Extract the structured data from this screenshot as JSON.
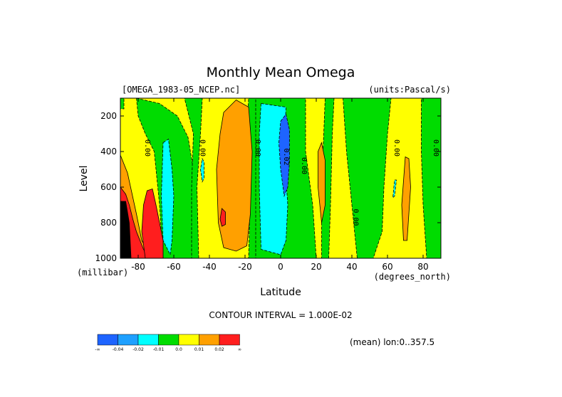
{
  "chart_data": {
    "type": "heatmap",
    "title": "Monthly Mean Omega",
    "dataset_label": "[OMEGA_1983-05_NCEP.nc]",
    "units_label": "(units:Pascal/s)",
    "xlabel": "Latitude",
    "ylabel": "Level",
    "x_units": "(degrees_north)",
    "y_units": "(millibar)",
    "xlim": [
      -90,
      90
    ],
    "ylim": [
      1000,
      100
    ],
    "x_ticks": [
      -80,
      -60,
      -40,
      -20,
      0,
      20,
      40,
      60,
      80
    ],
    "x_tick_labels": [
      "-80",
      "-60",
      "-40",
      "-20",
      "0",
      "20",
      "40",
      "60",
      "80"
    ],
    "y_ticks": [
      200,
      400,
      600,
      800,
      1000
    ],
    "y_tick_labels": [
      "200",
      "400",
      "600",
      "800",
      "1000"
    ],
    "contour_interval_text": "CONTOUR INTERVAL = 1.000E-02",
    "mean_text": "(mean) lon:0..357.5",
    "colorbar": {
      "colors": [
        "#1e64ff",
        "#1ea0ff",
        "#00ffff",
        "#00dc00",
        "#ffff00",
        "#ffa000",
        "#ff1e1e"
      ],
      "labels": [
        "-∞",
        "-0.04",
        "-0.02",
        "-0.01",
        "0.0",
        "0.01",
        "0.02",
        "∞"
      ]
    },
    "contour_labels": [
      {
        "text": "0.00",
        "lat": -76,
        "lev": 380
      },
      {
        "text": "0.00",
        "lat": -45,
        "lev": 380
      },
      {
        "text": "0.00",
        "lat": -14,
        "lev": 380
      },
      {
        "text": "0.02",
        "lat": 2,
        "lev": 430
      },
      {
        "text": "0.00",
        "lat": 12,
        "lev": 480
      },
      {
        "text": "0.00",
        "lat": 41,
        "lev": 770
      },
      {
        "text": "0.00",
        "lat": 64,
        "lev": 380
      },
      {
        "text": "0.00",
        "lat": 86,
        "lev": 380
      }
    ],
    "regions": [
      {
        "level": "0.0",
        "points": [
          [
            -90,
            100
          ],
          [
            90,
            100
          ],
          [
            90,
            1000
          ],
          [
            -90,
            1000
          ]
        ]
      },
      {
        "level": "-0.01",
        "points": [
          [
            -81,
            100
          ],
          [
            -68,
            130
          ],
          [
            -58,
            200
          ],
          [
            -52,
            320
          ],
          [
            -49,
            500
          ],
          [
            -48,
            700
          ],
          [
            -48,
            1000
          ],
          [
            -66,
            1000
          ],
          [
            -68,
            700
          ],
          [
            -71,
            400
          ],
          [
            -76,
            300
          ],
          [
            -80,
            200
          ]
        ]
      },
      {
        "level": "-0.01",
        "points": [
          [
            -54,
            100
          ],
          [
            -44,
            100
          ],
          [
            -45,
            300
          ],
          [
            -47,
            600
          ],
          [
            -46,
            1000
          ],
          [
            -50,
            1000
          ],
          [
            -50,
            600
          ],
          [
            -49,
            300
          ]
        ]
      },
      {
        "level": "-0.01",
        "points": [
          [
            -18,
            100
          ],
          [
            -11,
            100
          ],
          [
            -11,
            1000
          ],
          [
            -18,
            1000
          ],
          [
            -17,
            600
          ],
          [
            -19,
            300
          ]
        ]
      },
      {
        "level": "-0.01",
        "points": [
          [
            -14,
            100
          ],
          [
            14,
            100
          ],
          [
            14,
            400
          ],
          [
            18,
            700
          ],
          [
            20,
            1000
          ],
          [
            -14,
            1000
          ],
          [
            -14,
            600
          ]
        ]
      },
      {
        "level": "-0.01",
        "points": [
          [
            25,
            100
          ],
          [
            30,
            100
          ],
          [
            29,
            300
          ],
          [
            28,
            700
          ],
          [
            27,
            1000
          ],
          [
            23,
            1000
          ],
          [
            23,
            600
          ]
        ]
      },
      {
        "level": "-0.01",
        "points": [
          [
            35,
            100
          ],
          [
            62,
            100
          ],
          [
            60,
            300
          ],
          [
            58,
            600
          ],
          [
            57,
            850
          ],
          [
            52,
            1000
          ],
          [
            43,
            1000
          ],
          [
            40,
            700
          ],
          [
            37,
            400
          ]
        ]
      },
      {
        "level": "-0.01",
        "points": [
          [
            79,
            100
          ],
          [
            90,
            100
          ],
          [
            90,
            1000
          ],
          [
            82,
            1000
          ],
          [
            80,
            700
          ],
          [
            79,
            400
          ]
        ]
      },
      {
        "level": "-0.01",
        "points": [
          [
            -90,
            100
          ],
          [
            -88,
            100
          ],
          [
            -88,
            160
          ],
          [
            -90,
            160
          ]
        ]
      },
      {
        "level": "-0.02",
        "points": [
          [
            -66,
            350
          ],
          [
            -63,
            330
          ],
          [
            -61,
            500
          ],
          [
            -60,
            650
          ],
          [
            -61,
            900
          ],
          [
            -62,
            980
          ],
          [
            -66,
            900
          ],
          [
            -67,
            650
          ]
        ]
      },
      {
        "level": "-0.02",
        "points": [
          [
            -11,
            130
          ],
          [
            3,
            150
          ],
          [
            2,
            400
          ],
          [
            4,
            700
          ],
          [
            3,
            900
          ],
          [
            0,
            980
          ],
          [
            -11,
            950
          ],
          [
            -12,
            600
          ],
          [
            -12,
            300
          ]
        ]
      },
      {
        "level": "-0.02",
        "points": [
          [
            -44,
            440
          ],
          [
            -43,
            460
          ],
          [
            -43,
            550
          ],
          [
            -44,
            570
          ],
          [
            -45,
            500
          ]
        ]
      },
      {
        "level": "-0.02",
        "points": [
          [
            64,
            560
          ],
          [
            65,
            560
          ],
          [
            64,
            650
          ],
          [
            63,
            660
          ]
        ]
      },
      {
        "level": "-0.04",
        "points": [
          [
            0,
            230
          ],
          [
            3,
            190
          ],
          [
            5,
            280
          ],
          [
            5,
            450
          ],
          [
            4,
            600
          ],
          [
            2,
            650
          ],
          [
            0,
            500
          ],
          [
            -1,
            350
          ]
        ]
      },
      {
        "level": "0.01",
        "points": [
          [
            -32,
            180
          ],
          [
            -25,
            110
          ],
          [
            -18,
            150
          ],
          [
            -16,
            400
          ],
          [
            -17,
            750
          ],
          [
            -19,
            930
          ],
          [
            -25,
            960
          ],
          [
            -32,
            940
          ],
          [
            -35,
            800
          ],
          [
            -36,
            500
          ],
          [
            -34,
            300
          ]
        ]
      },
      {
        "level": "0.01",
        "points": [
          [
            21,
            400
          ],
          [
            23,
            350
          ],
          [
            25,
            450
          ],
          [
            25,
            700
          ],
          [
            23,
            800
          ],
          [
            21,
            600
          ]
        ]
      },
      {
        "level": "0.01",
        "points": [
          [
            70,
            430
          ],
          [
            72,
            440
          ],
          [
            73,
            600
          ],
          [
            71,
            900
          ],
          [
            69,
            900
          ],
          [
            68,
            700
          ]
        ]
      },
      {
        "level": "0.01",
        "points": [
          [
            -90,
            420
          ],
          [
            -86,
            520
          ],
          [
            -81,
            750
          ],
          [
            -78,
            900
          ],
          [
            -72,
            1000
          ],
          [
            -90,
            1000
          ]
        ]
      },
      {
        "level": "0.02",
        "points": [
          [
            -90,
            600
          ],
          [
            -87,
            640
          ],
          [
            -85,
            700
          ],
          [
            -83,
            780
          ],
          [
            -81,
            850
          ],
          [
            -77,
            950
          ],
          [
            -74,
            1000
          ],
          [
            -90,
            1000
          ]
        ]
      },
      {
        "level": "0.02",
        "points": [
          [
            -75,
            620
          ],
          [
            -72,
            610
          ],
          [
            -70,
            700
          ],
          [
            -68,
            800
          ],
          [
            -66,
            900
          ],
          [
            -66,
            1000
          ],
          [
            -76,
            1000
          ],
          [
            -78,
            850
          ],
          [
            -77,
            700
          ]
        ]
      },
      {
        "level": "0.02",
        "points": [
          [
            -33,
            720
          ],
          [
            -31,
            740
          ],
          [
            -31,
            810
          ],
          [
            -33,
            820
          ],
          [
            -34,
            780
          ]
        ]
      },
      {
        "level": "none",
        "points": [
          [
            -90,
            680
          ],
          [
            -87,
            680
          ],
          [
            -85,
            800
          ],
          [
            -84,
            1000
          ],
          [
            -90,
            1000
          ]
        ]
      }
    ]
  }
}
